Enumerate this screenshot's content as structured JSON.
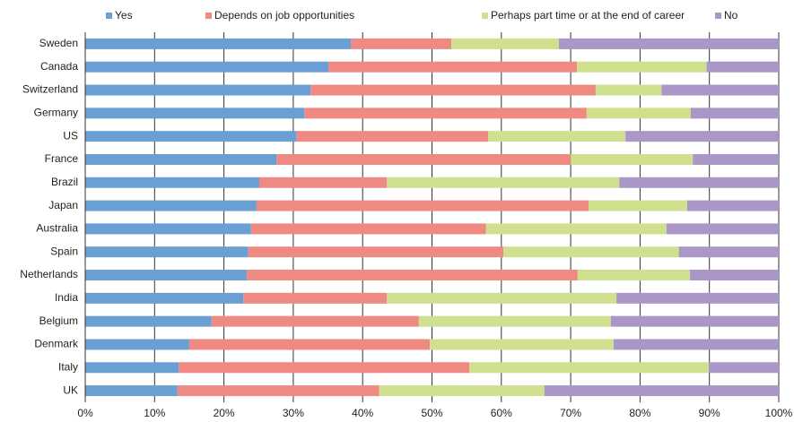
{
  "chart_data": {
    "type": "stacked-bar-horizontal",
    "categories": [
      "Sweden",
      "Canada",
      "Switzerland",
      "Germany",
      "US",
      "France",
      "Brazil",
      "Japan",
      "Australia",
      "Spain",
      "Netherlands",
      "India",
      "Belgium",
      "Denmark",
      "Italy",
      "UK"
    ],
    "series": [
      {
        "name": "Yes",
        "color": "#6a9fd4",
        "values": [
          38.3,
          35.1,
          32.5,
          31.6,
          30.5,
          27.6,
          25.1,
          24.7,
          23.9,
          23.5,
          23.3,
          22.8,
          18.2,
          15.0,
          13.5,
          13.3
        ]
      },
      {
        "name": "Depends on job opportunities",
        "color": "#ee8a82",
        "values": [
          14.5,
          35.8,
          41.1,
          40.7,
          27.6,
          42.4,
          18.4,
          47.9,
          33.9,
          36.8,
          47.7,
          20.7,
          29.9,
          34.7,
          41.9,
          29.1
        ]
      },
      {
        "name": "Perhaps part time or at the end of career",
        "color": "#cfe08f",
        "values": [
          15.5,
          18.7,
          9.5,
          15.0,
          19.8,
          17.6,
          33.5,
          14.2,
          26.0,
          25.3,
          16.2,
          33.1,
          27.7,
          26.5,
          34.5,
          23.8
        ]
      },
      {
        "name": "No",
        "color": "#ab96c8",
        "values": [
          31.7,
          10.4,
          16.9,
          12.7,
          22.1,
          12.4,
          23.0,
          13.2,
          16.2,
          14.4,
          12.8,
          23.4,
          24.2,
          23.8,
          10.1,
          33.8
        ]
      }
    ],
    "xlim": [
      0,
      100
    ],
    "xticks": [
      {
        "value": 0,
        "label": "0%"
      },
      {
        "value": 10,
        "label": "10%"
      },
      {
        "value": 20,
        "label": "20%"
      },
      {
        "value": 30,
        "label": "30%"
      },
      {
        "value": 40,
        "label": "40%"
      },
      {
        "value": 50,
        "label": "50%"
      },
      {
        "value": 60,
        "label": "60%"
      },
      {
        "value": 70,
        "label": "70%"
      },
      {
        "value": 80,
        "label": "80%"
      },
      {
        "value": 90,
        "label": "90%"
      },
      {
        "value": 100,
        "label": "100%"
      }
    ],
    "grid": true,
    "legend": "top"
  }
}
